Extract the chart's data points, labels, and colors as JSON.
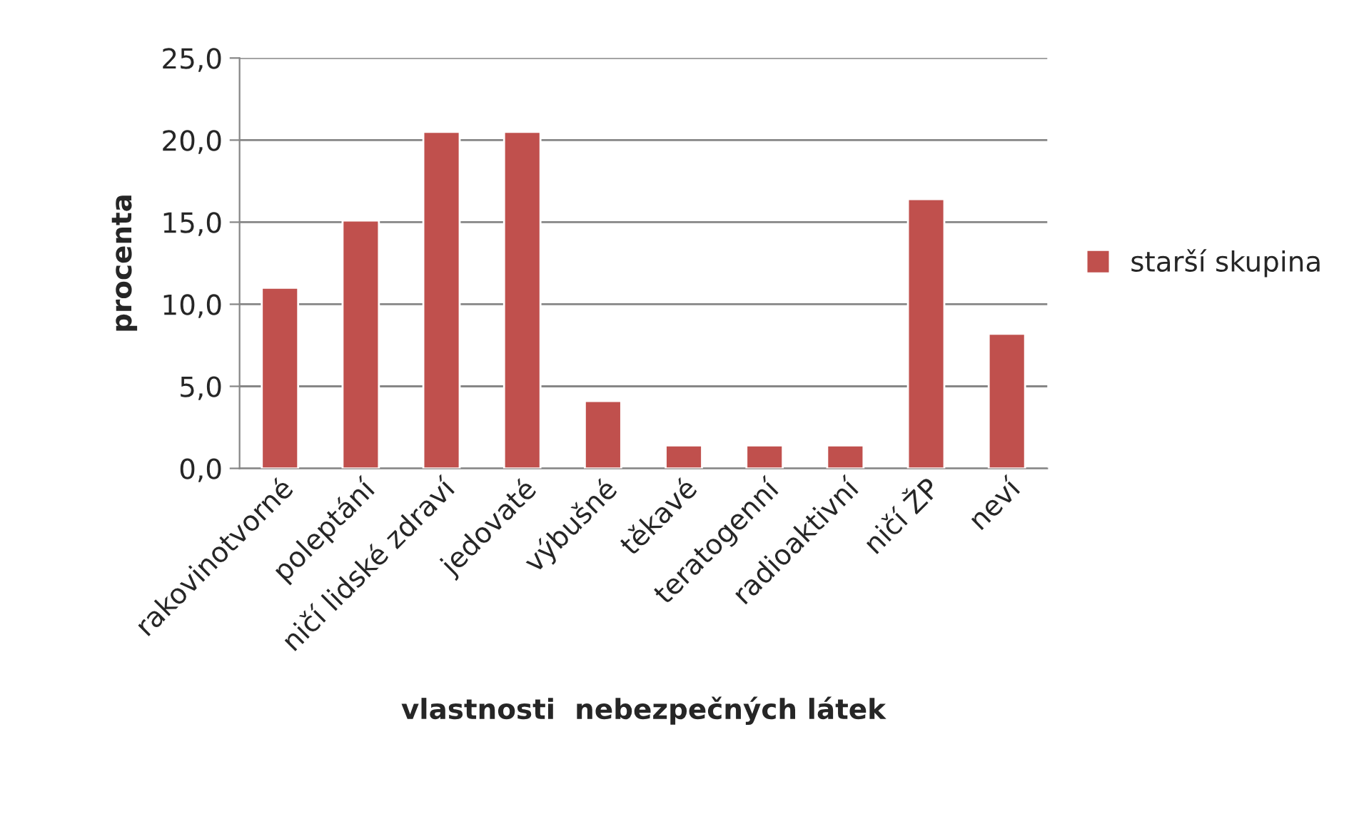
{
  "chart_data": {
    "type": "bar",
    "xlabel": "vlastnosti  nebezpečných látek",
    "ylabel": "procenta",
    "categories": [
      "rakovinotvorné",
      "poleptání",
      "ničí lidské zdraví",
      "jedovaté",
      "výbušné",
      "těkavé",
      "teratogenní",
      "radioaktivní",
      "ničí ŽP",
      "neví"
    ],
    "series": [
      {
        "name": "starší skupina",
        "color": "#c0504d",
        "values": [
          11.0,
          15.1,
          20.5,
          20.5,
          4.1,
          1.4,
          1.4,
          1.4,
          16.4,
          8.2
        ]
      }
    ],
    "ylim": [
      0,
      25
    ],
    "yticks": [
      {
        "value": 0,
        "label": "0,0"
      },
      {
        "value": 5,
        "label": "5,0"
      },
      {
        "value": 10,
        "label": "10,0"
      },
      {
        "value": 15,
        "label": "15,0"
      },
      {
        "value": 20,
        "label": "20,0"
      },
      {
        "value": 25,
        "label": "25,0"
      }
    ],
    "grid": "y",
    "legend": "right"
  }
}
